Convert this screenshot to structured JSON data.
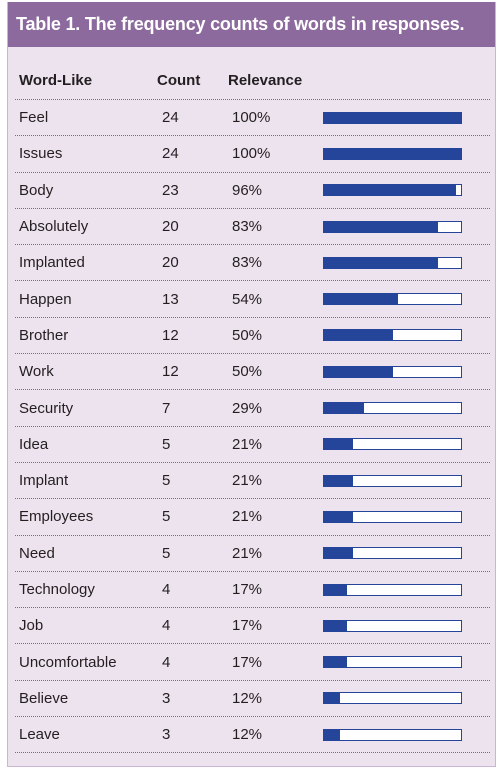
{
  "title": "Table 1. The frequency counts of words in responses.",
  "columns": {
    "word": "Word-Like",
    "count": "Count",
    "relevance": "Relevance"
  },
  "colors": {
    "header_bg": "#8c6a9d",
    "panel_bg": "#ece3ef",
    "bar": "#25459a"
  },
  "rows": [
    {
      "word": "Feel",
      "count": "24",
      "relevance": "100%",
      "fraction": 1.0
    },
    {
      "word": "Issues",
      "count": "24",
      "relevance": "100%",
      "fraction": 1.0
    },
    {
      "word": "Body",
      "count": "23",
      "relevance": "96%",
      "fraction": 0.96
    },
    {
      "word": "Absolutely",
      "count": "20",
      "relevance": "83%",
      "fraction": 0.83
    },
    {
      "word": "Implanted",
      "count": "20",
      "relevance": "83%",
      "fraction": 0.83
    },
    {
      "word": "Happen",
      "count": "13",
      "relevance": "54%",
      "fraction": 0.54
    },
    {
      "word": "Brother",
      "count": "12",
      "relevance": "50%",
      "fraction": 0.5
    },
    {
      "word": "Work",
      "count": "12",
      "relevance": "50%",
      "fraction": 0.5
    },
    {
      "word": "Security",
      "count": "7",
      "relevance": "29%",
      "fraction": 0.29
    },
    {
      "word": "Idea",
      "count": "5",
      "relevance": "21%",
      "fraction": 0.21
    },
    {
      "word": "Implant",
      "count": "5",
      "relevance": "21%",
      "fraction": 0.21
    },
    {
      "word": "Employees",
      "count": "5",
      "relevance": "21%",
      "fraction": 0.21
    },
    {
      "word": "Need",
      "count": "5",
      "relevance": "21%",
      "fraction": 0.21
    },
    {
      "word": "Technology",
      "count": "4",
      "relevance": "17%",
      "fraction": 0.17
    },
    {
      "word": "Job",
      "count": "4",
      "relevance": "17%",
      "fraction": 0.17
    },
    {
      "word": "Uncomfortable",
      "count": "4",
      "relevance": "17%",
      "fraction": 0.17
    },
    {
      "word": "Believe",
      "count": "3",
      "relevance": "12%",
      "fraction": 0.12
    },
    {
      "word": "Leave",
      "count": "3",
      "relevance": "12%",
      "fraction": 0.12
    }
  ]
}
